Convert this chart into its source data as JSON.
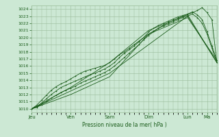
{
  "title": "",
  "xlabel": "Pression niveau de la mer( hPa )",
  "ylabel": "",
  "bg_color": "#cce8d4",
  "plot_bg_color": "#cce8d4",
  "grid_color": "#99bb99",
  "line_color": "#1a5c1a",
  "ylim": [
    1009.5,
    1024.5
  ],
  "yticks": [
    1010,
    1011,
    1012,
    1013,
    1014,
    1015,
    1016,
    1017,
    1018,
    1019,
    1020,
    1021,
    1022,
    1023,
    1024
  ],
  "day_labels": [
    "Jeu",
    "Ven",
    "Sam",
    "Dim",
    "Lun",
    "Ma"
  ],
  "day_positions": [
    0,
    24,
    48,
    72,
    96,
    108
  ],
  "total_hours": 114,
  "series": [
    {
      "x": [
        0,
        3,
        6,
        9,
        12,
        15,
        18,
        21,
        24,
        27,
        30,
        33,
        36,
        39,
        42,
        45,
        48,
        51,
        54,
        57,
        60,
        63,
        66,
        69,
        72,
        75,
        78,
        81,
        84,
        87,
        90,
        93,
        96,
        99,
        102,
        105,
        108,
        111,
        114
      ],
      "y": [
        1010,
        1010.5,
        1011.2,
        1011.9,
        1012.6,
        1013.1,
        1013.5,
        1013.8,
        1014.2,
        1014.6,
        1015.0,
        1015.3,
        1015.5,
        1015.7,
        1015.9,
        1016.1,
        1016.5,
        1017.0,
        1017.6,
        1018.0,
        1018.5,
        1019.0,
        1019.5,
        1020.0,
        1020.5,
        1020.9,
        1021.3,
        1021.6,
        1021.9,
        1022.2,
        1022.5,
        1022.8,
        1023.0,
        1023.3,
        1022.8,
        1022.0,
        1020.5,
        1018.5,
        1016.5
      ],
      "marker": "+"
    },
    {
      "x": [
        0,
        3,
        6,
        9,
        12,
        15,
        18,
        21,
        24,
        27,
        30,
        33,
        36,
        39,
        42,
        45,
        48,
        51,
        54,
        57,
        60,
        63,
        66,
        69,
        72,
        75,
        78,
        81,
        84,
        87,
        90,
        93,
        96,
        99,
        102,
        105,
        108,
        111,
        114
      ],
      "y": [
        1010,
        1010.3,
        1010.8,
        1011.4,
        1012.0,
        1012.5,
        1013.0,
        1013.3,
        1013.6,
        1013.9,
        1014.2,
        1014.5,
        1014.8,
        1015.0,
        1015.3,
        1015.6,
        1016.0,
        1016.5,
        1017.2,
        1017.8,
        1018.3,
        1018.8,
        1019.4,
        1020.0,
        1020.8,
        1021.3,
        1021.7,
        1022.0,
        1022.3,
        1022.6,
        1022.9,
        1023.1,
        1023.3,
        1023.6,
        1023.2,
        1022.5,
        1020.8,
        1018.8,
        1016.8
      ],
      "marker": "+"
    },
    {
      "x": [
        0,
        3,
        6,
        9,
        12,
        15,
        18,
        21,
        24,
        27,
        30,
        33,
        36,
        39,
        42,
        45,
        48,
        51,
        54,
        57,
        60,
        63,
        66,
        69,
        72,
        75,
        78,
        81,
        84,
        87,
        90,
        93,
        96,
        99,
        102,
        105,
        108,
        111,
        114
      ],
      "y": [
        1010,
        1010.2,
        1010.6,
        1011.0,
        1011.5,
        1011.9,
        1012.3,
        1012.6,
        1012.9,
        1013.2,
        1013.6,
        1013.9,
        1014.2,
        1014.5,
        1014.8,
        1015.1,
        1015.5,
        1016.0,
        1016.6,
        1017.2,
        1017.8,
        1018.4,
        1019.0,
        1019.7,
        1020.3,
        1020.8,
        1021.3,
        1021.7,
        1022.1,
        1022.4,
        1022.7,
        1023.0,
        1023.2,
        1023.5,
        1023.8,
        1024.2,
        1023.5,
        1022.5,
        1016.5
      ],
      "marker": "+"
    },
    {
      "x": [
        0,
        24,
        48,
        72,
        96,
        114
      ],
      "y": [
        1010,
        1013.0,
        1016.5,
        1021.0,
        1023.2,
        1016.5
      ],
      "marker": null
    },
    {
      "x": [
        0,
        24,
        48,
        72,
        96,
        114
      ],
      "y": [
        1010,
        1012.0,
        1014.5,
        1020.5,
        1022.8,
        1016.8
      ],
      "marker": null
    },
    {
      "x": [
        0,
        48,
        96,
        114
      ],
      "y": [
        1010,
        1015.0,
        1023.0,
        1016.5
      ],
      "marker": null
    }
  ]
}
